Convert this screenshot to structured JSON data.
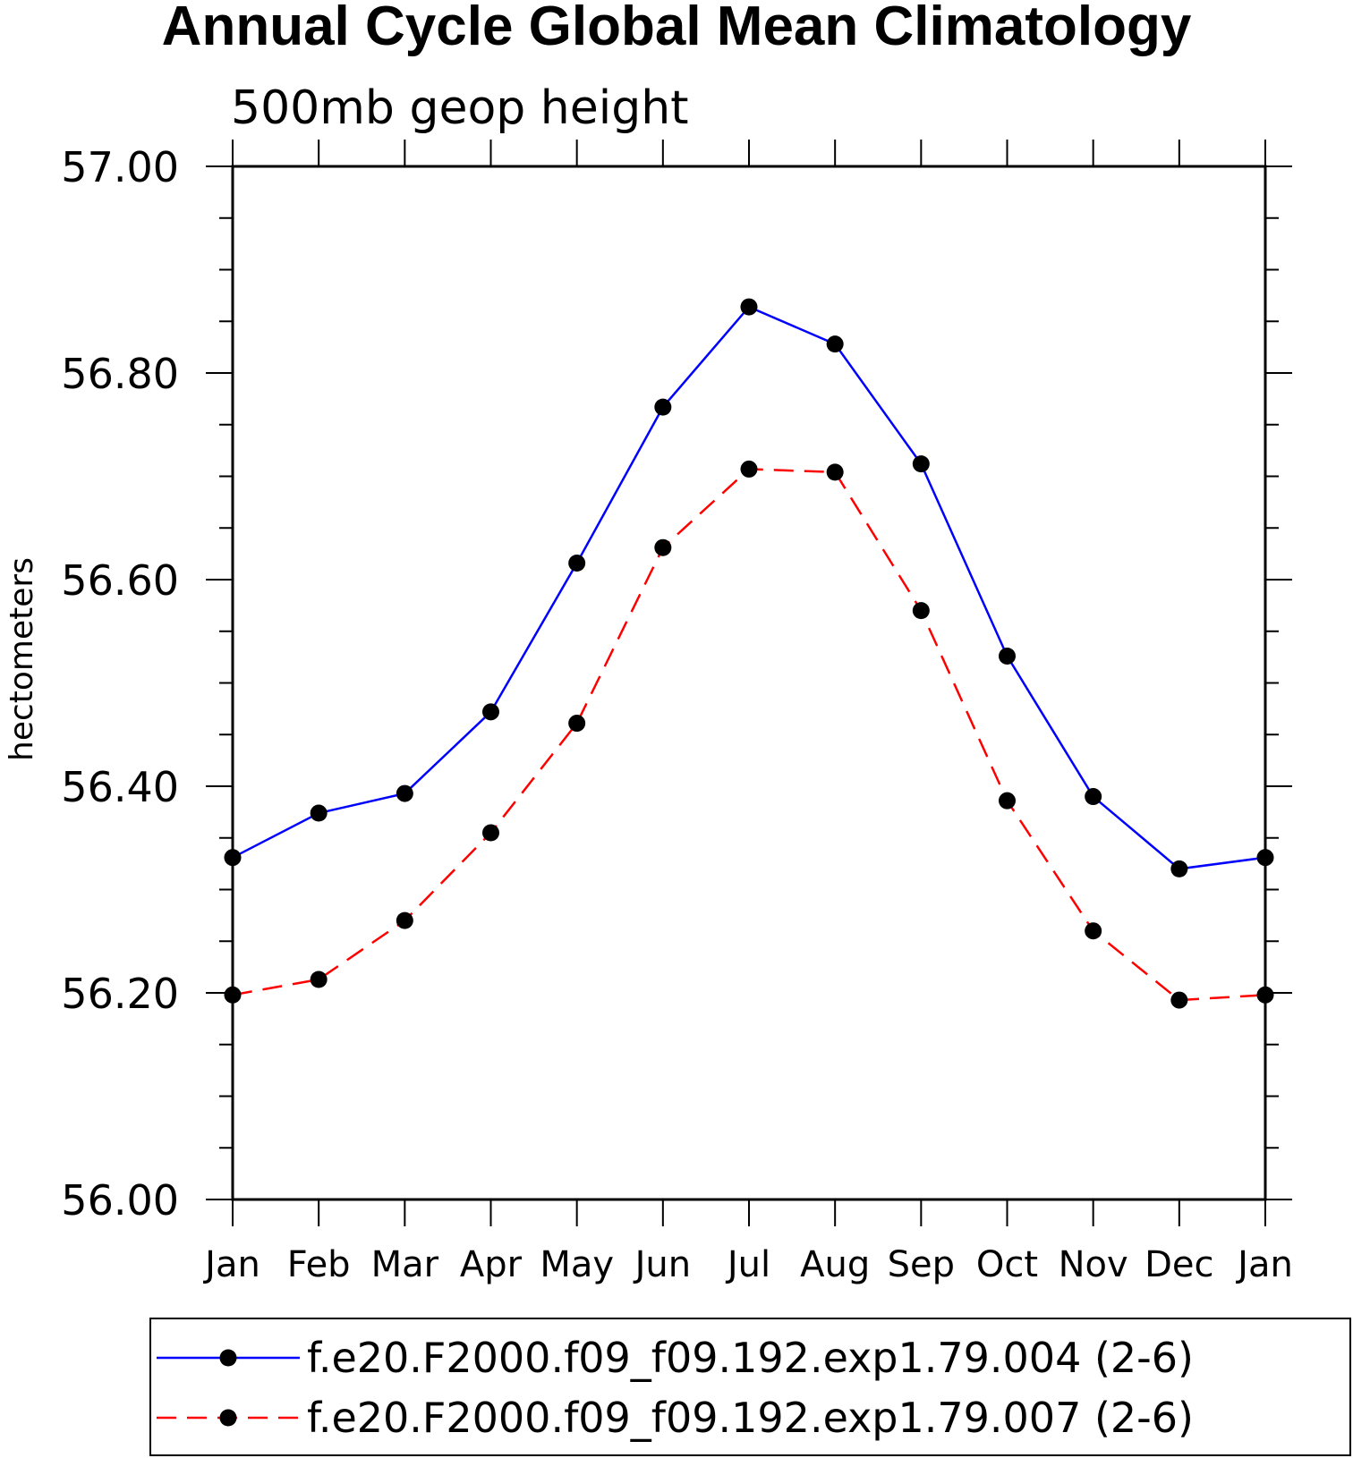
{
  "chart_data": {
    "type": "line",
    "title": "Annual Cycle Global Mean Climatology",
    "subtitle": "500mb geop height",
    "xlabel": "",
    "ylabel": "hectometers",
    "categories": [
      "Jan",
      "Feb",
      "Mar",
      "Apr",
      "May",
      "Jun",
      "Jul",
      "Aug",
      "Sep",
      "Oct",
      "Nov",
      "Dec",
      "Jan"
    ],
    "ylim": [
      56.0,
      57.0
    ],
    "y_ticks": [
      "56.00",
      "56.20",
      "56.40",
      "56.60",
      "56.80",
      "57.00"
    ],
    "legend_position": "bottom",
    "series": [
      {
        "name": "f.e20.F2000.f09_f09.192.exp1.79.004 (2-6)",
        "color": "#0000ff",
        "line_style": "solid",
        "values": [
          56.331,
          56.374,
          56.393,
          56.472,
          56.616,
          56.767,
          56.864,
          56.828,
          56.712,
          56.526,
          56.39,
          56.32,
          56.331
        ]
      },
      {
        "name": "f.e20.F2000.f09_f09.192.exp1.79.007 (2-6)",
        "color": "#ff0000",
        "line_style": "dashed",
        "values": [
          56.198,
          56.213,
          56.27,
          56.355,
          56.461,
          56.631,
          56.707,
          56.704,
          56.57,
          56.386,
          56.26,
          56.193,
          56.198
        ]
      }
    ]
  }
}
